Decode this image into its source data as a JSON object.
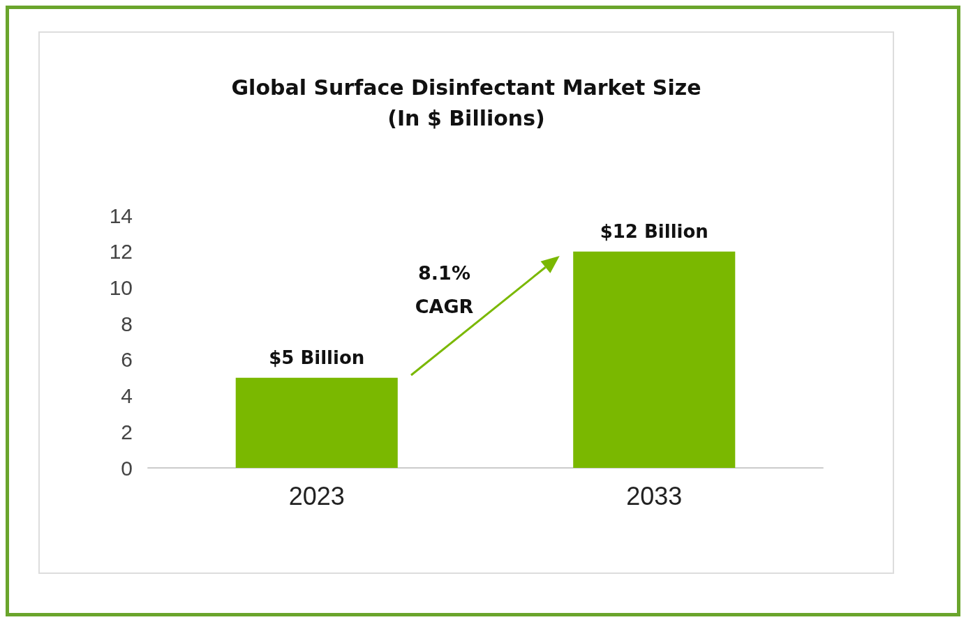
{
  "chart_data": {
    "type": "bar",
    "title": "Global Surface Disinfectant Market Size",
    "subtitle": "(In $ Billions)",
    "categories": [
      "2023",
      "2033"
    ],
    "values": [
      5,
      12
    ],
    "value_labels": [
      "$5 Billion",
      "$12 Billion"
    ],
    "color": "#7ab800",
    "ylim": [
      0,
      14
    ],
    "yticks": [
      0,
      2,
      4,
      6,
      8,
      10,
      12,
      14
    ],
    "grid": false,
    "annotations": [
      "8.1%\nCAGR"
    ]
  }
}
